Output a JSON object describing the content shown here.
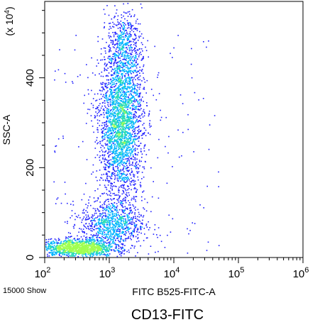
{
  "chart_data": {
    "type": "scatter",
    "title": "CD13-FITC",
    "xlabel": "FITC B525-FITC-A",
    "ylabel": "SSC-A",
    "y_multiplier_label": "(x 10^4)",
    "x_scale": "log",
    "xlim": [
      100,
      1000000
    ],
    "ylim": [
      0,
      570
    ],
    "x_ticks": [
      {
        "value": 100,
        "base": "10",
        "exp": "2"
      },
      {
        "value": 1000,
        "base": "10",
        "exp": "3"
      },
      {
        "value": 10000,
        "base": "10",
        "exp": "4"
      },
      {
        "value": 100000,
        "base": "10",
        "exp": "5"
      },
      {
        "value": 1000000,
        "base": "10",
        "exp": "6"
      }
    ],
    "y_ticks": [
      {
        "value": 0,
        "label": "0"
      },
      {
        "value": 200,
        "label": "200"
      },
      {
        "value": 400,
        "label": "400"
      }
    ],
    "event_count_label": "15000 Show",
    "grid": false,
    "density_colors": [
      "#1f1fff",
      "#00b4ff",
      "#28dcb4",
      "#a0ff50"
    ],
    "populations": [
      {
        "x_center": 1500,
        "x_log_spread": 0.17,
        "y_center": 300,
        "y_spread": 85,
        "count": 2600
      },
      {
        "x_center": 1700,
        "x_log_spread": 0.13,
        "y_center": 470,
        "y_spread": 40,
        "count": 450
      },
      {
        "x_center": 1100,
        "x_log_spread": 0.25,
        "y_center": 75,
        "y_spread": 28,
        "count": 900
      },
      {
        "x_center": 320,
        "x_log_spread": 0.28,
        "y_center": 22,
        "y_spread": 10,
        "count": 1300
      }
    ]
  }
}
